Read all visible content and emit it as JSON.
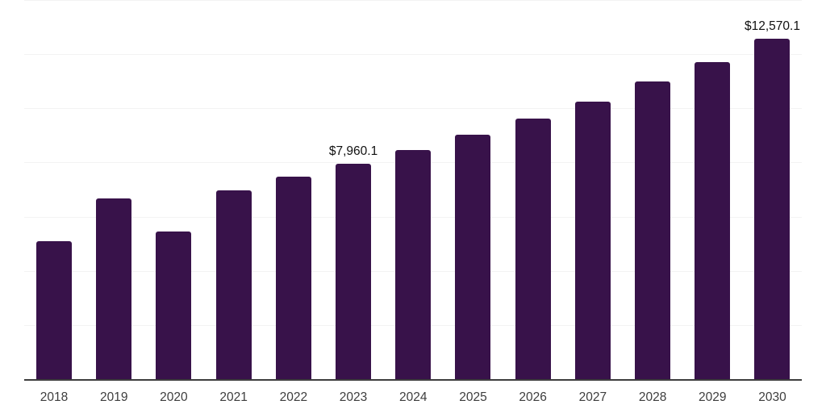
{
  "chart": {
    "background": "#ffffff",
    "bar_color": "#38124a",
    "grid_color": "#f3f3f3",
    "axis_color": "#3d3d3d",
    "tick_label_color": "#3d3d3d",
    "data_label_color": "#111111"
  },
  "chart_data": {
    "type": "bar",
    "title": "",
    "xlabel": "",
    "ylabel": "",
    "categories": [
      "2018",
      "2019",
      "2020",
      "2021",
      "2022",
      "2023",
      "2024",
      "2025",
      "2026",
      "2027",
      "2028",
      "2029",
      "2030"
    ],
    "values": [
      5090,
      6670,
      5450,
      6970,
      7480,
      7960.1,
      8450,
      9040,
      9630,
      10250,
      10990,
      11720,
      12570.1
    ],
    "data_labels": {
      "2023": "$7,960.1",
      "2030": "$12,570.1"
    },
    "ylim": [
      0,
      14000
    ],
    "grid_step": 2000,
    "grid": true,
    "legend": false,
    "y_axis_tick_labels_visible": false
  }
}
